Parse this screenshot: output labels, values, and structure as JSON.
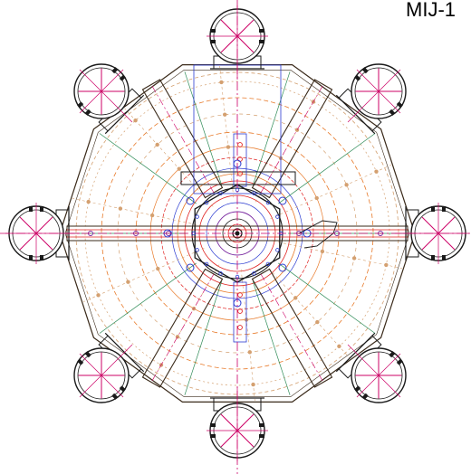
{
  "title_label": "MIJ-1",
  "colors": {
    "outline": "#3a2a1a",
    "crosshair": "#cc0066",
    "centerline": "#cc0066",
    "orange": "#e87a2a",
    "tan": "#d4a070",
    "green": "#2e8b57",
    "red": "#e0201e",
    "blue": "#2a3ad0",
    "purple": "#7a2aa0",
    "dark": "#1a1a1a"
  },
  "drawing": {
    "shell_sides": 10,
    "nozzle_count": 8,
    "beam_count": 4,
    "icons": [
      "nozzle-flange-icon",
      "crosshair-icon"
    ]
  }
}
